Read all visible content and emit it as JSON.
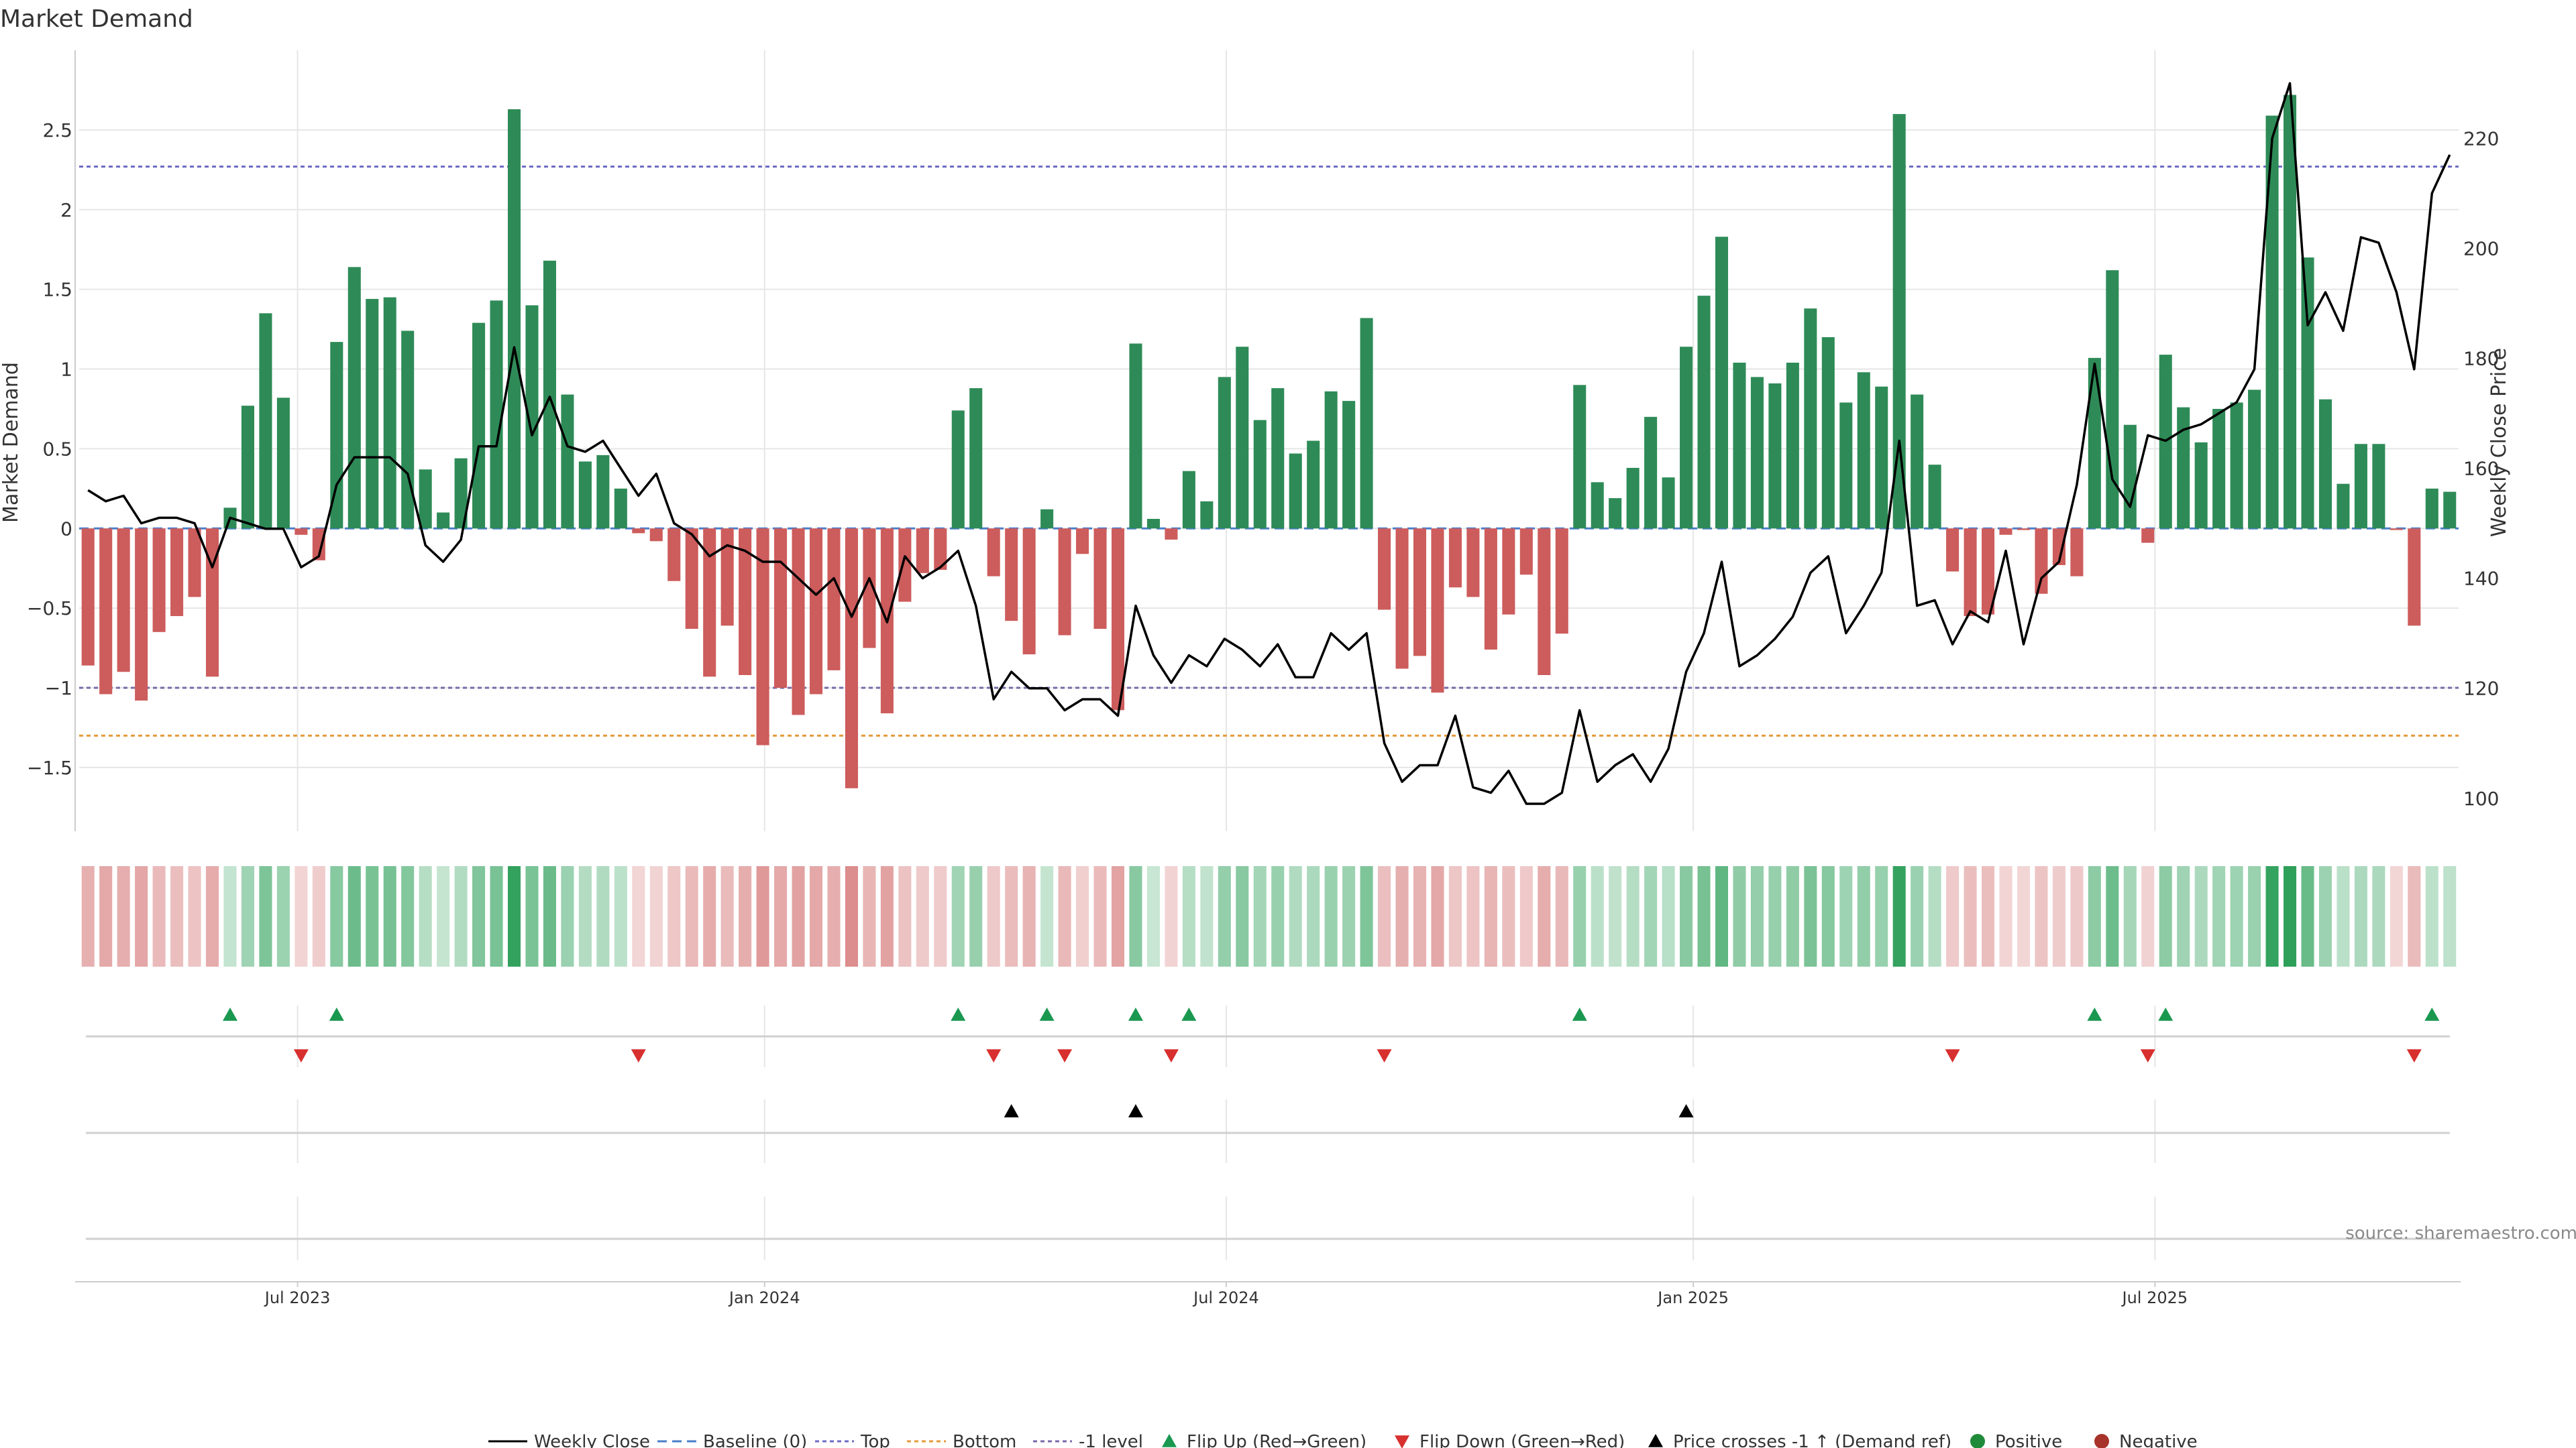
{
  "chart_data": {
    "type": "bar+line",
    "title": "Market Demand",
    "ylabel_left": "Market Demand",
    "ylabel_right": "Weekly Close Price",
    "source": "source: sharemaestro.com",
    "x_tick_labels": [
      "Jul 2023",
      "Jan 2024",
      "Jul 2024",
      "Jan 2025",
      "Jul 2025"
    ],
    "x_tick_weeks": [
      12.3,
      38.6,
      64.6,
      90.9,
      116.9
    ],
    "y_left_ticks": [
      2.5,
      2,
      1.5,
      1,
      0.5,
      0,
      -0.5,
      -1,
      -1.5
    ],
    "y_left_tick_labels": [
      "2.5",
      "2",
      "1.5",
      "1",
      "0.5",
      "0",
      "−0.5",
      "−1",
      "−1.5"
    ],
    "y_left_range": [
      -1.9,
      3.0
    ],
    "y_right_ticks": [
      100,
      120,
      140,
      160,
      180,
      200,
      220
    ],
    "y_right_tick_labels": [
      "100",
      "120",
      "140",
      "160",
      "180",
      "200",
      "220"
    ],
    "y_right_range": [
      94,
      236
    ],
    "levels": {
      "baseline": 0,
      "top": 2.27,
      "bottom": -1.3,
      "minus_one": -1.0
    },
    "colors": {
      "positive": "#2e8b57",
      "negative": "#cd5c5c",
      "price_line": "#000000",
      "baseline": "#4a7ec9",
      "top": "#6c6cc4",
      "bottom": "#e69a3a",
      "minus_one": "#7a6aa8",
      "flip_up": "#1a9850",
      "flip_down": "#d7302f",
      "cross": "#000000",
      "grid": "#e6e6e6",
      "axis": "#cccccc"
    },
    "series": [
      {
        "name": "Market Demand",
        "values": [
          -0.86,
          -1.04,
          -0.9,
          -1.08,
          -0.65,
          -0.55,
          -0.43,
          -0.93,
          0.13,
          0.77,
          1.35,
          0.82,
          -0.04,
          -0.2,
          1.17,
          1.64,
          1.44,
          1.45,
          1.24,
          0.37,
          0.1,
          0.44,
          1.29,
          1.43,
          2.63,
          1.4,
          1.68,
          0.84,
          0.42,
          0.46,
          0.25,
          -0.03,
          -0.08,
          -0.33,
          -0.63,
          -0.93,
          -0.61,
          -0.92,
          -1.36,
          -1.0,
          -1.17,
          -1.04,
          -0.89,
          -1.63,
          -0.75,
          -1.16,
          -0.46,
          -0.28,
          -0.26,
          0.74,
          0.88,
          -0.3,
          -0.58,
          -0.79,
          0.12,
          -0.67,
          -0.16,
          -0.63,
          -1.14,
          1.16,
          0.06,
          -0.07,
          0.36,
          0.17,
          0.95,
          1.14,
          0.68,
          0.88,
          0.47,
          0.55,
          0.86,
          0.8,
          1.32,
          -0.51,
          -0.88,
          -0.8,
          -1.03,
          -0.37,
          -0.43,
          -0.76,
          -0.54,
          -0.29,
          -0.92,
          -0.66,
          0.9,
          0.29,
          0.19,
          0.38,
          0.7,
          0.32,
          1.14,
          1.46,
          1.83,
          1.04,
          0.95,
          0.91,
          1.04,
          1.38,
          1.2,
          0.79,
          0.98,
          0.89,
          2.6,
          0.84,
          0.4,
          -0.27,
          -0.55,
          -0.54,
          -0.04,
          -0.01,
          -0.41,
          -0.23,
          -0.3,
          1.07,
          1.62,
          0.65,
          -0.09,
          1.09,
          0.76,
          0.54,
          0.75,
          0.79,
          0.87,
          2.59,
          2.72,
          1.7,
          0.81,
          0.28,
          0.53,
          0.53,
          -0.01,
          -0.61,
          0.25,
          0.23
        ]
      },
      {
        "name": "Weekly Close",
        "values": [
          156,
          154,
          155,
          150,
          151,
          151,
          150,
          142,
          151,
          150,
          149,
          149,
          142,
          144,
          157,
          162,
          162,
          162,
          159,
          146,
          143,
          147,
          164,
          164,
          182,
          166,
          173,
          164,
          163,
          165,
          160,
          155,
          159,
          150,
          148,
          144,
          146,
          145,
          143,
          143,
          140,
          137,
          140,
          133,
          140,
          132,
          144,
          140,
          142,
          145,
          135,
          118,
          123,
          120,
          120,
          116,
          118,
          118,
          115,
          135,
          126,
          121,
          126,
          124,
          129,
          127,
          124,
          128,
          122,
          122,
          130,
          127,
          130,
          110,
          103,
          106,
          106,
          115,
          102,
          101,
          105,
          99,
          99,
          101,
          116,
          103,
          106,
          108,
          103,
          109,
          123,
          130,
          143,
          124,
          126,
          129,
          133,
          141,
          144,
          130,
          135,
          141,
          165,
          135,
          136,
          128,
          134,
          132,
          145,
          128,
          140,
          143,
          157,
          179,
          158,
          153,
          166,
          165,
          167,
          168,
          170,
          172,
          178,
          220,
          230,
          186,
          192,
          185,
          202,
          201,
          192,
          178,
          210,
          217
        ]
      }
    ],
    "flip_up_weeks": [
      8,
      14,
      49,
      54,
      59,
      62,
      84,
      113,
      117,
      132
    ],
    "flip_down_weeks": [
      12,
      31,
      51,
      55,
      61,
      73,
      105,
      116,
      131
    ],
    "price_cross_weeks": [
      52,
      59,
      90
    ],
    "legend": [
      "Weekly Close",
      "Baseline (0)",
      "Top",
      "Bottom",
      "-1 level",
      "Flip Up (Red→Green)",
      "Flip Down (Green→Red)",
      "Price crosses -1 ↑ (Demand ref)",
      "Positive",
      "Negative"
    ]
  }
}
